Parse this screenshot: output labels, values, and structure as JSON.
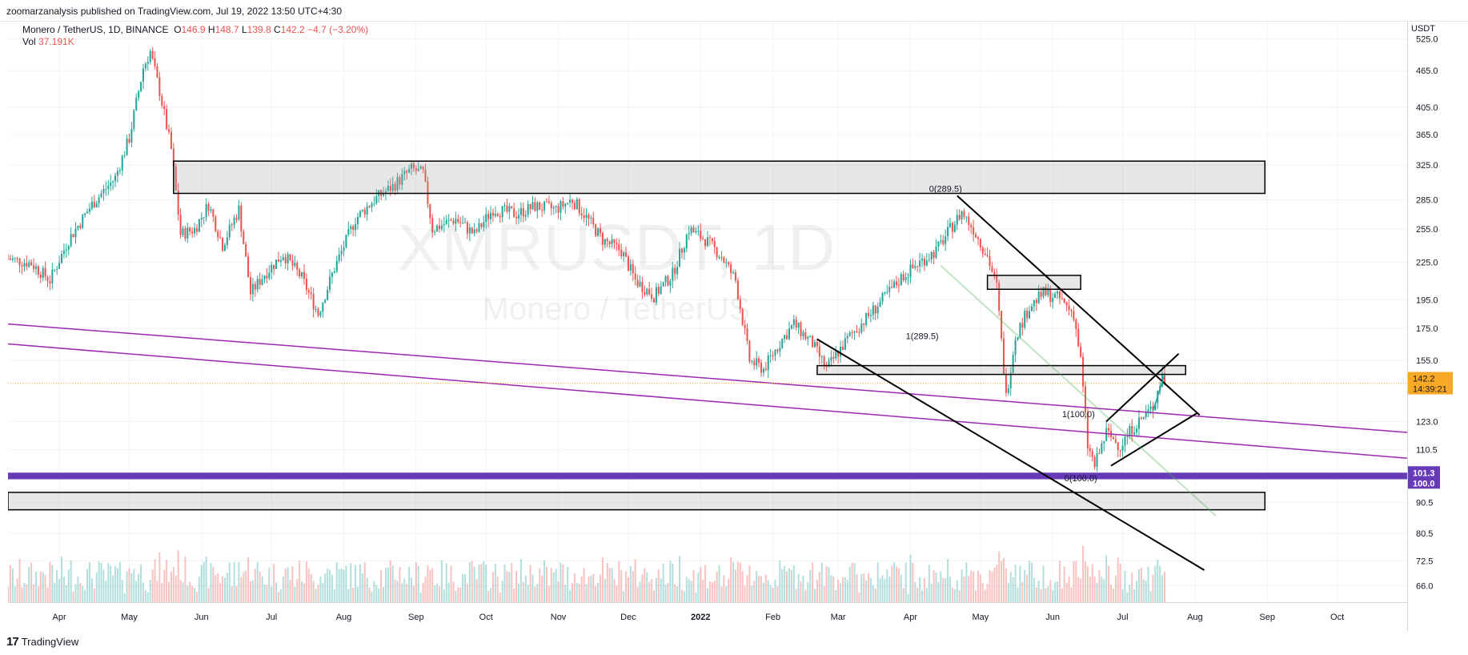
{
  "header": {
    "published": "zoomarzanalysis published on TradingView.com, Jul 19, 2022 13:50 UTC+4:30"
  },
  "legend": {
    "symbol": "Monero / TetherUS, 1D, BINANCE",
    "open_label": "O",
    "open": "146.9",
    "high_label": "H",
    "high": "148.7",
    "low_label": "L",
    "low": "139.8",
    "close_label": "C",
    "close": "142.2",
    "change": "−4.7 (−3.20%)",
    "vol_label": "Vol",
    "vol": "37.191K"
  },
  "watermark": {
    "ticker": "XMRUSDT, 1D",
    "name": "Monero / TetherUS"
  },
  "footer": {
    "brand": "TradingView",
    "logo_mark": "17"
  },
  "colors": {
    "up": "#26a69a",
    "down": "#ef5350",
    "trend": "#9c27b0",
    "level": "#673ab7",
    "last_price": "#f9a825"
  },
  "chart_data": {
    "type": "candlestick",
    "symbol": "XMRUSDT",
    "interval": "1D",
    "exchange": "BINANCE",
    "y_scale": "log",
    "ylim": [
      62,
      560
    ],
    "y_unit": "USDT",
    "y_ticks": [
      "525.0",
      "465.0",
      "405.0",
      "365.0",
      "325.0",
      "285.0",
      "255.0",
      "225.0",
      "195.0",
      "175.0",
      "155.0",
      "123.0",
      "110.5",
      "90.5",
      "80.5",
      "72.5",
      "66.0"
    ],
    "x_ticks": [
      "Apr",
      "May",
      "Jun",
      "Jul",
      "Aug",
      "Sep",
      "Oct",
      "Nov",
      "Dec",
      "2022",
      "Feb",
      "Mar",
      "Apr",
      "May",
      "Jun",
      "Jul",
      "Aug",
      "Sep",
      "Oct"
    ],
    "x_range": [
      "2021-03-10",
      "2022-10-31"
    ],
    "last_price": {
      "value": "142.2",
      "countdown": "14:39:21"
    },
    "level_labels": [
      "101.3",
      "100.0"
    ],
    "close_path": [
      [
        "2021-03-10",
        228
      ],
      [
        "2021-03-20",
        224
      ],
      [
        "2021-03-28",
        210
      ],
      [
        "2021-04-05",
        245
      ],
      [
        "2021-04-15",
        280
      ],
      [
        "2021-04-25",
        310
      ],
      [
        "2021-05-01",
        360
      ],
      [
        "2021-05-07",
        470
      ],
      [
        "2021-05-10",
        500
      ],
      [
        "2021-05-14",
        430
      ],
      [
        "2021-05-19",
        345
      ],
      [
        "2021-05-23",
        250
      ],
      [
        "2021-05-29",
        255
      ],
      [
        "2021-06-04",
        280
      ],
      [
        "2021-06-10",
        240
      ],
      [
        "2021-06-17",
        275
      ],
      [
        "2021-06-22",
        200
      ],
      [
        "2021-06-28",
        215
      ],
      [
        "2021-07-06",
        232
      ],
      [
        "2021-07-14",
        212
      ],
      [
        "2021-07-21",
        185
      ],
      [
        "2021-07-28",
        220
      ],
      [
        "2021-08-06",
        265
      ],
      [
        "2021-08-14",
        285
      ],
      [
        "2021-08-22",
        300
      ],
      [
        "2021-08-30",
        320
      ],
      [
        "2021-09-04",
        315
      ],
      [
        "2021-09-08",
        255
      ],
      [
        "2021-09-18",
        265
      ],
      [
        "2021-09-26",
        250
      ],
      [
        "2021-10-04",
        275
      ],
      [
        "2021-10-14",
        270
      ],
      [
        "2021-10-22",
        278
      ],
      [
        "2021-10-31",
        275
      ],
      [
        "2021-11-07",
        285
      ],
      [
        "2021-11-12",
        270
      ],
      [
        "2021-11-20",
        245
      ],
      [
        "2021-11-28",
        235
      ],
      [
        "2021-12-04",
        210
      ],
      [
        "2021-12-12",
        198
      ],
      [
        "2021-12-20",
        215
      ],
      [
        "2021-12-27",
        255
      ],
      [
        "2022-01-03",
        245
      ],
      [
        "2022-01-10",
        230
      ],
      [
        "2022-01-16",
        210
      ],
      [
        "2022-01-22",
        155
      ],
      [
        "2022-01-28",
        150
      ],
      [
        "2022-02-05",
        168
      ],
      [
        "2022-02-10",
        178
      ],
      [
        "2022-02-18",
        165
      ],
      [
        "2022-02-24",
        150
      ],
      [
        "2022-03-01",
        160
      ],
      [
        "2022-03-06",
        170
      ],
      [
        "2022-03-12",
        180
      ],
      [
        "2022-03-20",
        195
      ],
      [
        "2022-03-28",
        212
      ],
      [
        "2022-04-05",
        225
      ],
      [
        "2022-04-12",
        235
      ],
      [
        "2022-04-18",
        255
      ],
      [
        "2022-04-23",
        272
      ],
      [
        "2022-04-28",
        255
      ],
      [
        "2022-05-04",
        230
      ],
      [
        "2022-05-08",
        205
      ],
      [
        "2022-05-12",
        135
      ],
      [
        "2022-05-16",
        170
      ],
      [
        "2022-05-22",
        190
      ],
      [
        "2022-05-28",
        200
      ],
      [
        "2022-06-04",
        196
      ],
      [
        "2022-06-10",
        185
      ],
      [
        "2022-06-13",
        155
      ],
      [
        "2022-06-16",
        112
      ],
      [
        "2022-06-19",
        104
      ],
      [
        "2022-06-24",
        118
      ],
      [
        "2022-06-30",
        112
      ],
      [
        "2022-07-05",
        120
      ],
      [
        "2022-07-10",
        125
      ],
      [
        "2022-07-14",
        130
      ],
      [
        "2022-07-18",
        147
      ],
      [
        "2022-07-19",
        142.2
      ]
    ],
    "annotations": [
      {
        "text": "0(289.5)"
      },
      {
        "text": "1(289.5)"
      },
      {
        "text": "1(100.0)"
      },
      {
        "text": "0(100.0)"
      }
    ]
  },
  "time_labels": [
    "Apr",
    "May",
    "Jun",
    "Jul",
    "Aug",
    "Sep",
    "Oct",
    "Nov",
    "Dec",
    "2022",
    "Feb",
    "Mar",
    "Apr",
    "May",
    "Jun",
    "Jul",
    "Aug",
    "Sep",
    "Oct"
  ]
}
